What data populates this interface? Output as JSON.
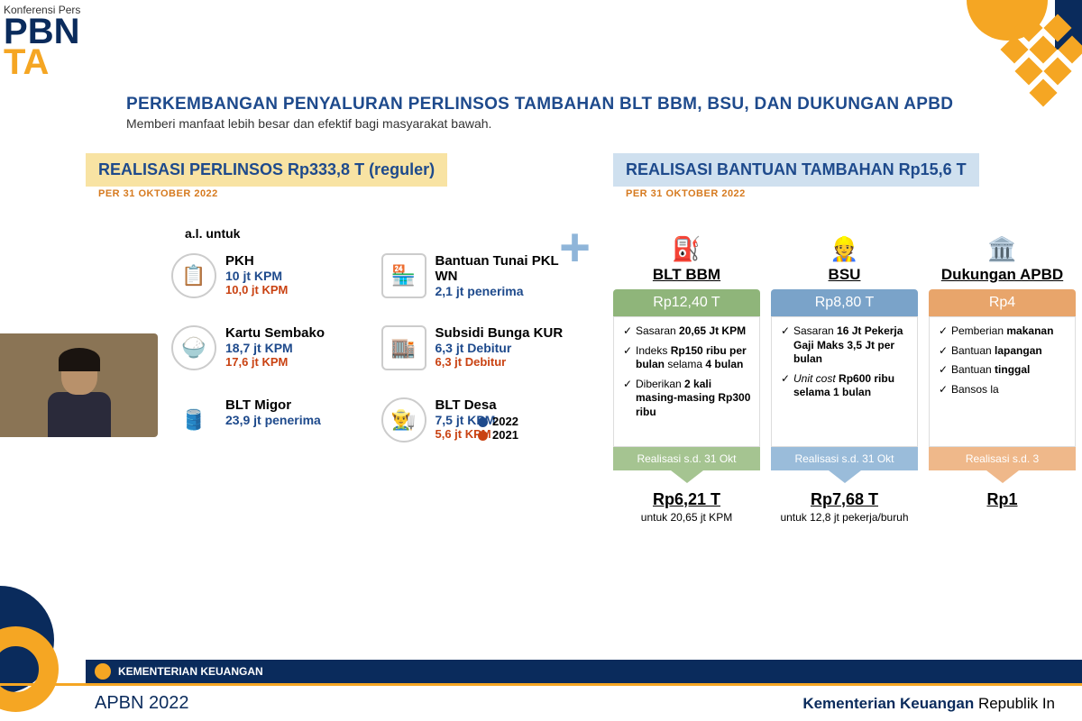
{
  "header": {
    "konferensi": "Konferensi Pers",
    "logo_line1_a": "P",
    "logo_line1_b": "BN",
    "logo_line2": "TA"
  },
  "title": {
    "main": "PERKEMBANGAN PENYALURAN PERLINSOS TAMBAHAN BLT BBM, BSU, DAN DUKUNGAN APBD",
    "sub": "Memberi manfaat lebih besar dan efektif bagi masyarakat bawah."
  },
  "left": {
    "heading": "REALISASI PERLINSOS Rp333,8 T (reguler)",
    "date": "PER 31 OKTOBER 2022",
    "al_untuk": "a.l. untuk",
    "programs": [
      {
        "icon": "📋",
        "name": "PKH",
        "v1": "10 jt KPM",
        "v2": "10,0 jt KPM"
      },
      {
        "icon": "🏪",
        "name": "Bantuan Tunai PKL WN",
        "v1": "2,1 jt penerima",
        "v2": ""
      },
      {
        "icon": "🍚",
        "name": "Kartu Sembako",
        "v1": "18,7 jt KPM",
        "v2": "17,6 jt KPM"
      },
      {
        "icon": "🏬",
        "name": "Subsidi Bunga KUR",
        "v1": "6,3 jt Debitur",
        "v2": "6,3 jt Debitur"
      },
      {
        "icon": "🛢️",
        "name": "BLT Migor",
        "v1": "23,9 jt penerima",
        "v2": ""
      },
      {
        "icon": "👨‍🌾",
        "name": "BLT Desa",
        "v1": "7,5 jt KPM",
        "v2": "5,6 jt KPM"
      }
    ],
    "legend_2022": "2022",
    "legend_2021": "2021"
  },
  "right": {
    "heading": "REALISASI BANTUAN TAMBAHAN Rp15,6 T",
    "date": "PER 31 OKTOBER 2022",
    "cards": [
      {
        "icon": "⛽",
        "title": "BLT BBM",
        "amount": "Rp12,40 T",
        "head_class": "green",
        "items": [
          "Sasaran <b>20,65 Jt KPM</b>",
          "Indeks <b>Rp150 ribu per bulan</b> selama <b>4 bulan</b>",
          "Diberikan <b>2 kali masing-masing Rp300 ribu</b>"
        ],
        "arrow": "Realisasi s.d. 31 Okt",
        "result_amt": "Rp6,21 T",
        "result_for": "untuk 20,65 jt KPM"
      },
      {
        "icon": "👷",
        "title": "BSU",
        "amount": "Rp8,80 T",
        "head_class": "bluec",
        "items": [
          "Sasaran <b>16 Jt Pekerja Gaji Maks 3,5 Jt per bulan</b>",
          "<i>Unit cost</i> <b>Rp600 ribu selama 1 bulan</b>"
        ],
        "arrow": "Realisasi s.d. 31 Okt",
        "result_amt": "Rp7,68 T",
        "result_for": "untuk 12,8 jt pekerja/buruh"
      },
      {
        "icon": "🏛️",
        "title": "Dukungan APBD",
        "amount": "Rp4",
        "head_class": "orange",
        "items": [
          "Pemberian <b>makanan</b>",
          "Bantuan <b>lapangan</b>",
          "Bantuan <b>tinggal</b>",
          "Bansos la"
        ],
        "arrow": "Realisasi s.d. 3",
        "result_amt": "Rp1",
        "result_for": ""
      }
    ]
  },
  "footer": {
    "ministry": "KEMENTERIAN KEUANGAN",
    "bottom_left_a": "APBN",
    "bottom_left_b": " 2022",
    "bottom_right_a": "Kementerian Keuangan",
    "bottom_right_b": " Republik In"
  },
  "colors": {
    "navy": "#0a2b5c",
    "yellow": "#f5a623",
    "blue_text": "#1e4a8c",
    "red_text": "#c94212",
    "orange_text": "#d67a1f",
    "head_yellow": "#f8e3a3",
    "head_blue": "#cfe0ef"
  }
}
